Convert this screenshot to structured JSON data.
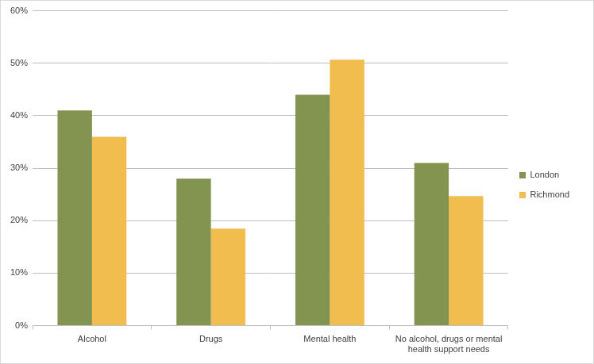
{
  "chart_data": {
    "type": "bar",
    "categories": [
      "Alcohol",
      "Drugs",
      "Mental health",
      "No alcohol, drugs or mental health support needs"
    ],
    "series": [
      {
        "name": "London",
        "color": "#839450",
        "values": [
          41,
          28,
          44,
          31
        ]
      },
      {
        "name": "Richmond",
        "color": "#f1bd4e",
        "values": [
          36,
          18.5,
          50.7,
          24.7
        ]
      }
    ],
    "ylim": [
      0,
      60
    ],
    "yticks": [
      {
        "value": 0,
        "label": "0%"
      },
      {
        "value": 10,
        "label": "10%"
      },
      {
        "value": 20,
        "label": "20%"
      },
      {
        "value": 30,
        "label": "30%"
      },
      {
        "value": 40,
        "label": "40%"
      },
      {
        "value": 50,
        "label": "50%"
      },
      {
        "value": 60,
        "label": "60%"
      }
    ],
    "grid": true,
    "legend": "right"
  }
}
